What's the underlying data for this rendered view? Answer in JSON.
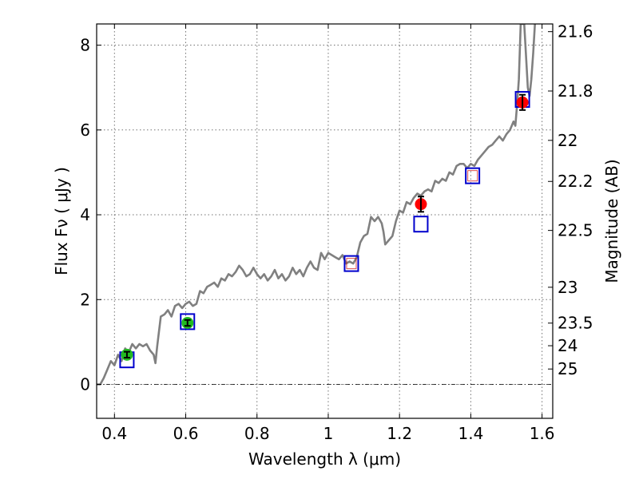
{
  "chart_data": {
    "type": "scatter",
    "xlabel": "Wavelength  λ (μm)",
    "ylabel": "Flux  Fν  ( μJy )",
    "ylabel_right": "Magnitude (AB)",
    "xlim": [
      0.35,
      1.63
    ],
    "ylim": [
      -0.8,
      8.5
    ],
    "grid": true,
    "zero_line": 0,
    "x_ticks": [
      {
        "value": 0.4,
        "label": "0.4"
      },
      {
        "value": 0.6,
        "label": "0.6"
      },
      {
        "value": 0.8,
        "label": "0.8"
      },
      {
        "value": 1.0,
        "label": "1"
      },
      {
        "value": 1.2,
        "label": "1.2"
      },
      {
        "value": 1.4,
        "label": "1.4"
      },
      {
        "value": 1.6,
        "label": "1.6"
      }
    ],
    "y_ticks": [
      {
        "value": 0,
        "label": "0"
      },
      {
        "value": 2,
        "label": "2"
      },
      {
        "value": 4,
        "label": "4"
      },
      {
        "value": 6,
        "label": "6"
      },
      {
        "value": 8,
        "label": "8"
      }
    ],
    "mag_ticks": [
      {
        "value": 21.6,
        "label": "21.6"
      },
      {
        "value": 21.8,
        "label": "21.8"
      },
      {
        "value": 22.0,
        "label": "22"
      },
      {
        "value": 22.2,
        "label": "22.2"
      },
      {
        "value": 22.5,
        "label": "22.5"
      },
      {
        "value": 23.0,
        "label": "23"
      },
      {
        "value": 23.5,
        "label": "23.5"
      },
      {
        "value": 24.0,
        "label": "24"
      },
      {
        "value": 25.0,
        "label": "25"
      }
    ],
    "template_spectrum": {
      "color": "#808080",
      "points": [
        [
          0.35,
          0.0
        ],
        [
          0.36,
          0.0
        ],
        [
          0.37,
          0.15
        ],
        [
          0.38,
          0.35
        ],
        [
          0.39,
          0.55
        ],
        [
          0.4,
          0.45
        ],
        [
          0.41,
          0.7
        ],
        [
          0.42,
          0.55
        ],
        [
          0.43,
          0.85
        ],
        [
          0.44,
          0.75
        ],
        [
          0.45,
          0.95
        ],
        [
          0.46,
          0.85
        ],
        [
          0.47,
          0.95
        ],
        [
          0.48,
          0.9
        ],
        [
          0.49,
          0.95
        ],
        [
          0.5,
          0.8
        ],
        [
          0.51,
          0.7
        ],
        [
          0.515,
          0.5
        ],
        [
          0.52,
          0.9
        ],
        [
          0.53,
          1.6
        ],
        [
          0.54,
          1.65
        ],
        [
          0.55,
          1.75
        ],
        [
          0.56,
          1.6
        ],
        [
          0.57,
          1.85
        ],
        [
          0.58,
          1.9
        ],
        [
          0.59,
          1.8
        ],
        [
          0.6,
          1.9
        ],
        [
          0.61,
          1.95
        ],
        [
          0.62,
          1.85
        ],
        [
          0.63,
          1.9
        ],
        [
          0.64,
          2.2
        ],
        [
          0.65,
          2.15
        ],
        [
          0.66,
          2.3
        ],
        [
          0.67,
          2.35
        ],
        [
          0.68,
          2.4
        ],
        [
          0.69,
          2.3
        ],
        [
          0.7,
          2.5
        ],
        [
          0.71,
          2.45
        ],
        [
          0.72,
          2.6
        ],
        [
          0.73,
          2.55
        ],
        [
          0.74,
          2.65
        ],
        [
          0.75,
          2.8
        ],
        [
          0.76,
          2.7
        ],
        [
          0.77,
          2.55
        ],
        [
          0.78,
          2.6
        ],
        [
          0.79,
          2.75
        ],
        [
          0.8,
          2.6
        ],
        [
          0.81,
          2.5
        ],
        [
          0.82,
          2.6
        ],
        [
          0.83,
          2.45
        ],
        [
          0.84,
          2.55
        ],
        [
          0.85,
          2.7
        ],
        [
          0.86,
          2.5
        ],
        [
          0.87,
          2.6
        ],
        [
          0.88,
          2.45
        ],
        [
          0.89,
          2.55
        ],
        [
          0.9,
          2.75
        ],
        [
          0.91,
          2.6
        ],
        [
          0.92,
          2.7
        ],
        [
          0.93,
          2.55
        ],
        [
          0.94,
          2.75
        ],
        [
          0.95,
          2.9
        ],
        [
          0.96,
          2.75
        ],
        [
          0.97,
          2.7
        ],
        [
          0.98,
          3.1
        ],
        [
          0.99,
          2.95
        ],
        [
          1.0,
          3.1
        ],
        [
          1.01,
          3.05
        ],
        [
          1.02,
          3.0
        ],
        [
          1.03,
          2.95
        ],
        [
          1.04,
          3.05
        ],
        [
          1.05,
          2.85
        ],
        [
          1.06,
          2.9
        ],
        [
          1.07,
          2.85
        ],
        [
          1.08,
          3.0
        ],
        [
          1.09,
          3.35
        ],
        [
          1.1,
          3.5
        ],
        [
          1.11,
          3.55
        ],
        [
          1.12,
          3.95
        ],
        [
          1.13,
          3.85
        ],
        [
          1.14,
          3.95
        ],
        [
          1.15,
          3.8
        ],
        [
          1.155,
          3.6
        ],
        [
          1.16,
          3.3
        ],
        [
          1.17,
          3.4
        ],
        [
          1.18,
          3.5
        ],
        [
          1.19,
          3.85
        ],
        [
          1.2,
          4.1
        ],
        [
          1.21,
          4.05
        ],
        [
          1.22,
          4.3
        ],
        [
          1.23,
          4.25
        ],
        [
          1.24,
          4.4
        ],
        [
          1.25,
          4.5
        ],
        [
          1.26,
          4.45
        ],
        [
          1.27,
          4.55
        ],
        [
          1.28,
          4.6
        ],
        [
          1.29,
          4.55
        ],
        [
          1.3,
          4.8
        ],
        [
          1.31,
          4.75
        ],
        [
          1.32,
          4.85
        ],
        [
          1.33,
          4.8
        ],
        [
          1.34,
          5.0
        ],
        [
          1.35,
          4.95
        ],
        [
          1.36,
          5.15
        ],
        [
          1.37,
          5.2
        ],
        [
          1.38,
          5.2
        ],
        [
          1.39,
          5.1
        ],
        [
          1.4,
          5.2
        ],
        [
          1.41,
          5.15
        ],
        [
          1.42,
          5.3
        ],
        [
          1.43,
          5.4
        ],
        [
          1.44,
          5.5
        ],
        [
          1.45,
          5.6
        ],
        [
          1.46,
          5.65
        ],
        [
          1.47,
          5.75
        ],
        [
          1.48,
          5.85
        ],
        [
          1.49,
          5.75
        ],
        [
          1.5,
          5.9
        ],
        [
          1.51,
          6.0
        ],
        [
          1.52,
          6.2
        ],
        [
          1.525,
          6.1
        ],
        [
          1.53,
          6.6
        ],
        [
          1.535,
          7.2
        ],
        [
          1.54,
          8.5
        ],
        [
          1.55,
          8.5
        ],
        [
          1.56,
          7.0
        ],
        [
          1.565,
          6.8
        ],
        [
          1.57,
          7.2
        ],
        [
          1.575,
          7.8
        ],
        [
          1.58,
          8.5
        ]
      ]
    },
    "series": [
      {
        "marker": "square-open",
        "color": "#0000cc",
        "points": [
          {
            "x": 0.435,
            "y": 0.58
          },
          {
            "x": 0.605,
            "y": 1.48
          },
          {
            "x": 1.065,
            "y": 2.85
          },
          {
            "x": 1.26,
            "y": 3.78
          },
          {
            "x": 1.405,
            "y": 4.92
          },
          {
            "x": 1.545,
            "y": 6.72
          }
        ]
      },
      {
        "marker": "square-open-small",
        "color": "#cc0000",
        "points": [
          {
            "x": 1.065,
            "y": 2.85
          },
          {
            "x": 1.405,
            "y": 4.92
          }
        ]
      },
      {
        "marker": "circle",
        "color": "#ff0000",
        "points": [
          {
            "x": 1.26,
            "y": 4.25,
            "err": 0.18
          },
          {
            "x": 1.545,
            "y": 6.65,
            "err": 0.18
          }
        ]
      },
      {
        "marker": "circle",
        "color": "#22bb22",
        "points": [
          {
            "x": 0.435,
            "y": 0.7,
            "err": 0.07
          },
          {
            "x": 0.605,
            "y": 1.45,
            "err": 0.07
          }
        ]
      }
    ]
  }
}
